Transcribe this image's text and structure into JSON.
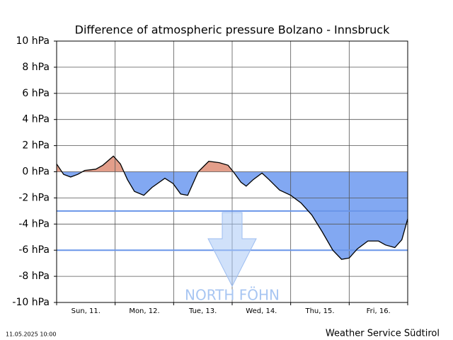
{
  "chart_data": {
    "type": "area",
    "title": "Difference of atmospheric pressure Bolzano - Innsbruck",
    "categories": [
      "Sun, 11.",
      "Mon, 12.",
      "Tue, 13.",
      "Wed, 14.",
      "Thu, 15.",
      "Fri, 16."
    ],
    "xlim": [
      0,
      6
    ],
    "ylim": [
      -10,
      10
    ],
    "yticks": [
      {
        "value": -10,
        "label": "-10 hPa"
      },
      {
        "value": -8,
        "label": "-8 hPa"
      },
      {
        "value": -6,
        "label": "-6 hPa"
      },
      {
        "value": -4,
        "label": "-4 hPa"
      },
      {
        "value": -2,
        "label": "-2 hPa"
      },
      {
        "value": 0,
        "label": "0 hPa"
      },
      {
        "value": 2,
        "label": "2 hPa"
      },
      {
        "value": 4,
        "label": "4 hPa"
      },
      {
        "value": 6,
        "label": "6 hPa"
      },
      {
        "value": 8,
        "label": "8 hPa"
      },
      {
        "value": 10,
        "label": "10 hPa"
      }
    ],
    "grid": true,
    "x": [
      0,
      0.12,
      0.24,
      0.36,
      0.48,
      0.67,
      0.79,
      0.97,
      1.09,
      1.21,
      1.33,
      1.49,
      1.63,
      1.85,
      1.99,
      2.12,
      2.24,
      2.42,
      2.6,
      2.78,
      2.93,
      3.02,
      3.15,
      3.24,
      3.36,
      3.51,
      3.63,
      3.81,
      4.0,
      4.18,
      4.36,
      4.54,
      4.72,
      4.87,
      5.0,
      5.14,
      5.32,
      5.5,
      5.62,
      5.78,
      5.9,
      6
    ],
    "values": [
      0.6,
      -0.2,
      -0.4,
      -0.2,
      0.1,
      0.2,
      0.5,
      1.2,
      0.6,
      -0.6,
      -1.5,
      -1.8,
      -1.2,
      -0.5,
      -0.9,
      -1.7,
      -1.8,
      0.0,
      0.8,
      0.7,
      0.5,
      0.0,
      -0.8,
      -1.1,
      -0.6,
      -0.1,
      -0.6,
      -1.4,
      -1.8,
      -2.4,
      -3.3,
      -4.6,
      -6.0,
      -6.7,
      -6.6,
      -5.9,
      -5.3,
      -5.3,
      -5.6,
      -5.8,
      -5.2,
      -3.6
    ],
    "positive_color": "#e39e8a",
    "negative_color": "#82a8f2",
    "line_color": "#000000",
    "hlines": [
      {
        "value": -3,
        "color": "#6a96e8"
      },
      {
        "value": -6,
        "color": "#6a96e8"
      }
    ],
    "annotation": "NORTH FÖHN",
    "timestamp": "11.05.2025 10:00",
    "source": "Weather Service Südtirol"
  }
}
